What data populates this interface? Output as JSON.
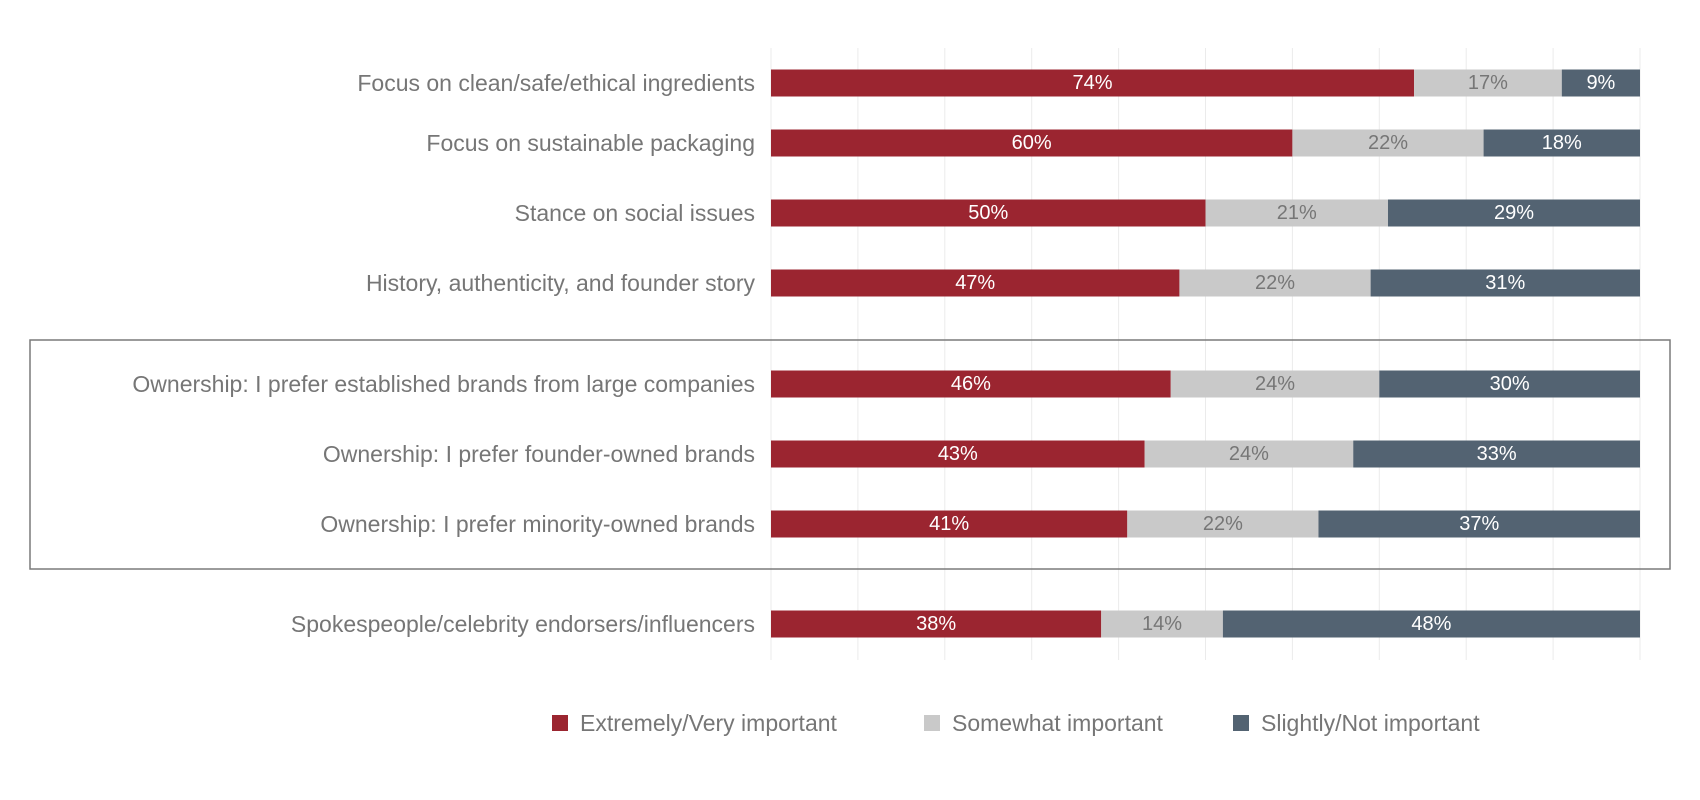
{
  "chart_data": {
    "type": "bar",
    "orientation": "horizontal",
    "stacked": true,
    "categories": [
      "Focus on clean/safe/ethical ingredients",
      "Focus on sustainable packaging",
      "Stance on social issues",
      "History, authenticity, and founder story",
      "Ownership: I prefer established brands from large companies",
      "Ownership: I prefer founder-owned brands",
      "Ownership: I prefer minority-owned brands",
      "Spokespeople/celebrity endorsers/influencers"
    ],
    "series": [
      {
        "name": "Extremely/Very important",
        "color": "#9B2530",
        "label_color": "#ffffff",
        "values": [
          74,
          60,
          50,
          47,
          46,
          43,
          41,
          38
        ],
        "labels": [
          "74%",
          "60%",
          "50%",
          "47%",
          "46%",
          "43%",
          "41%",
          "38%"
        ]
      },
      {
        "name": "Somewhat important",
        "color": "#C9C9C9",
        "label_color": "#767676",
        "values": [
          17,
          22,
          21,
          22,
          24,
          24,
          22,
          14
        ],
        "labels": [
          "17%",
          "22%",
          "21%",
          "22%",
          "24%",
          "24%",
          "22%",
          "14%"
        ]
      },
      {
        "name": "Slightly/Not important",
        "color": "#536372",
        "label_color": "#ffffff",
        "values": [
          9,
          18,
          29,
          31,
          30,
          33,
          37,
          48
        ],
        "labels": [
          "9%",
          "18%",
          "29%",
          "31%",
          "30%",
          "33%",
          "37%",
          "48%"
        ]
      }
    ],
    "xlim": [
      0,
      100
    ],
    "grid": true,
    "highlighted_group": [
      4,
      5,
      6
    ],
    "legend_position": "bottom"
  }
}
